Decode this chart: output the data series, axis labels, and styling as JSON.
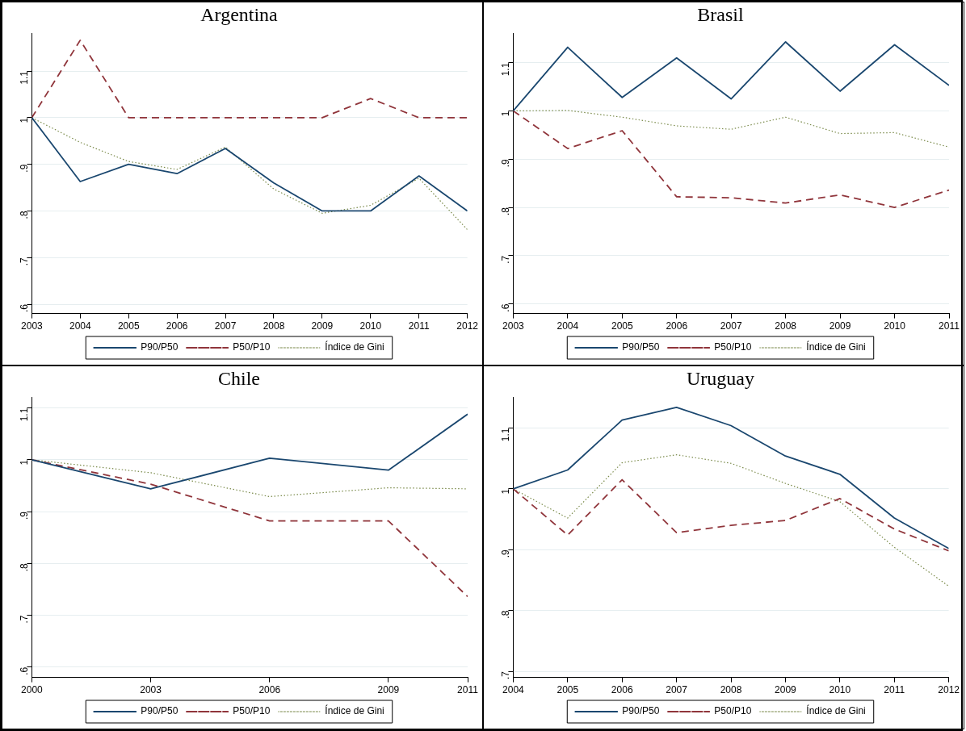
{
  "chart_data": [
    {
      "type": "line",
      "title": "Argentina",
      "x": [
        2003,
        2004,
        2005,
        2006,
        2007,
        2008,
        2009,
        2010,
        2011,
        2012
      ],
      "xlim": [
        2003,
        2012
      ],
      "xticks": [
        2003,
        2004,
        2005,
        2006,
        2007,
        2008,
        2009,
        2010,
        2011,
        2012
      ],
      "ylim": [
        0.58,
        1.18
      ],
      "yticks": [
        {
          "value": 0.6,
          "label": ".6"
        },
        {
          "value": 0.7,
          "label": ".7"
        },
        {
          "value": 0.8,
          "label": ".8"
        },
        {
          "value": 0.9,
          "label": ".9"
        },
        {
          "value": 1,
          "label": "1"
        },
        {
          "value": 1.1,
          "label": "1.1"
        }
      ],
      "grid": "y",
      "legend": "bottom",
      "marker": "none",
      "series": [
        {
          "name": "P90/P50",
          "color": "#1a476f",
          "line_style": "solid",
          "values": [
            1,
            0.863,
            0.9,
            0.88,
            0.934,
            0.86,
            0.8,
            0.8,
            0.875,
            0.8
          ]
        },
        {
          "name": "P50/P10",
          "color": "#90353b",
          "line_style": "dashed",
          "values": [
            1,
            1.166,
            1,
            1,
            1,
            1,
            1,
            1.041,
            1,
            1
          ]
        },
        {
          "name": "Índice de Gini",
          "color": "#7a8a4a",
          "line_style": "dotted",
          "values": [
            1,
            0.947,
            0.906,
            0.889,
            0.937,
            0.847,
            0.795,
            0.812,
            0.87,
            0.76
          ]
        }
      ]
    },
    {
      "type": "line",
      "title": "Brasil",
      "x": [
        2003,
        2004,
        2005,
        2006,
        2007,
        2008,
        2009,
        2010,
        2011
      ],
      "xlim": [
        2003,
        2011
      ],
      "xticks": [
        2003,
        2004,
        2005,
        2006,
        2007,
        2008,
        2009,
        2010,
        2011
      ],
      "ylim": [
        0.58,
        1.16
      ],
      "yticks": [
        {
          "value": 0.6,
          "label": ".6"
        },
        {
          "value": 0.7,
          "label": ".7"
        },
        {
          "value": 0.8,
          "label": ".8"
        },
        {
          "value": 0.9,
          "label": ".9"
        },
        {
          "value": 1,
          "label": "1"
        },
        {
          "value": 1.1,
          "label": "1.1"
        }
      ],
      "grid": "y",
      "legend": "bottom",
      "marker": "none",
      "series": [
        {
          "name": "P90/P50",
          "color": "#1a476f",
          "line_style": "solid",
          "values": [
            1,
            1.132,
            1.028,
            1.11,
            1.025,
            1.143,
            1.041,
            1.137,
            1.053
          ]
        },
        {
          "name": "P50/P10",
          "color": "#90353b",
          "line_style": "dashed",
          "values": [
            1,
            0.922,
            0.959,
            0.822,
            0.82,
            0.809,
            0.826,
            0.8,
            0.836
          ]
        },
        {
          "name": "Índice de Gini",
          "color": "#7a8a4a",
          "line_style": "dotted",
          "values": [
            1,
            1.001,
            0.987,
            0.969,
            0.962,
            0.987,
            0.953,
            0.955,
            0.925
          ]
        }
      ]
    },
    {
      "type": "line",
      "title": "Chile",
      "x": [
        2000,
        2003,
        2006,
        2009,
        2011
      ],
      "xlim": [
        2000,
        2011
      ],
      "xticks": [
        2000,
        2003,
        2006,
        2009,
        2011
      ],
      "ylim": [
        0.58,
        1.12
      ],
      "yticks": [
        {
          "value": 0.6,
          "label": ".6"
        },
        {
          "value": 0.7,
          "label": ".7"
        },
        {
          "value": 0.8,
          "label": ".8"
        },
        {
          "value": 0.9,
          "label": ".9"
        },
        {
          "value": 1,
          "label": "1"
        },
        {
          "value": 1.1,
          "label": "1.1"
        }
      ],
      "grid": "y",
      "legend": "bottom",
      "marker": "none",
      "series": [
        {
          "name": "P90/P50",
          "color": "#1a476f",
          "line_style": "solid",
          "values": [
            1,
            0.944,
            1.003,
            0.98,
            1.088
          ]
        },
        {
          "name": "P50/P10",
          "color": "#90353b",
          "line_style": "dashed",
          "values": [
            1,
            0.953,
            0.882,
            0.882,
            0.736
          ]
        },
        {
          "name": "Índice de Gini",
          "color": "#7a8a4a",
          "line_style": "dotted",
          "values": [
            1,
            0.975,
            0.929,
            0.946,
            0.944
          ]
        }
      ]
    },
    {
      "type": "line",
      "title": "Uruguay",
      "x": [
        2004,
        2005,
        2006,
        2007,
        2008,
        2009,
        2010,
        2011,
        2012
      ],
      "xlim": [
        2004,
        2012
      ],
      "xticks": [
        2004,
        2005,
        2006,
        2007,
        2008,
        2009,
        2010,
        2011,
        2012
      ],
      "ylim": [
        0.69,
        1.15
      ],
      "yticks": [
        {
          "value": 0.7,
          "label": ".7"
        },
        {
          "value": 0.8,
          "label": ".8"
        },
        {
          "value": 0.9,
          "label": ".9"
        },
        {
          "value": 1,
          "label": "1"
        },
        {
          "value": 1.1,
          "label": "1.1"
        }
      ],
      "grid": "y",
      "legend": "bottom",
      "marker": "none",
      "series": [
        {
          "name": "P90/P50",
          "color": "#1a476f",
          "line_style": "solid",
          "values": [
            1,
            1.031,
            1.113,
            1.134,
            1.104,
            1.054,
            1.024,
            0.952,
            0.902
          ]
        },
        {
          "name": "P50/P10",
          "color": "#90353b",
          "line_style": "dashed",
          "values": [
            1,
            0.924,
            1.015,
            0.928,
            0.94,
            0.948,
            0.984,
            0.934,
            0.898
          ]
        },
        {
          "name": "Índice de Gini",
          "color": "#7a8a4a",
          "line_style": "dotted",
          "values": [
            1,
            0.952,
            1.043,
            1.056,
            1.042,
            1.009,
            0.979,
            0.904,
            0.84
          ]
        }
      ]
    }
  ]
}
